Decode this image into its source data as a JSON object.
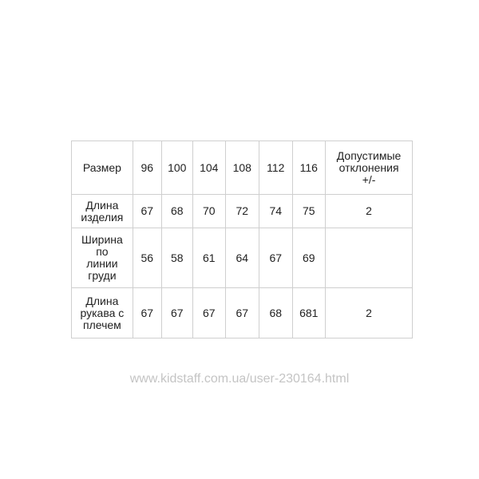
{
  "table": {
    "header": [
      "Размер",
      "96",
      "100",
      "104",
      "108",
      "112",
      "116",
      "Допустимые отклонения +/-"
    ],
    "rows": [
      [
        "Длина изделия",
        "67",
        "68",
        "70",
        "72",
        "74",
        "75",
        "2"
      ],
      [
        "Ширина по линии груди",
        "56",
        "58",
        "61",
        "64",
        "67",
        "69",
        ""
      ],
      [
        "Длина рукава с плечем",
        "67",
        "67",
        "67",
        "67",
        "68",
        "681",
        "2"
      ]
    ]
  },
  "watermark": "www.kidstaff.com.ua/user-230164.html"
}
